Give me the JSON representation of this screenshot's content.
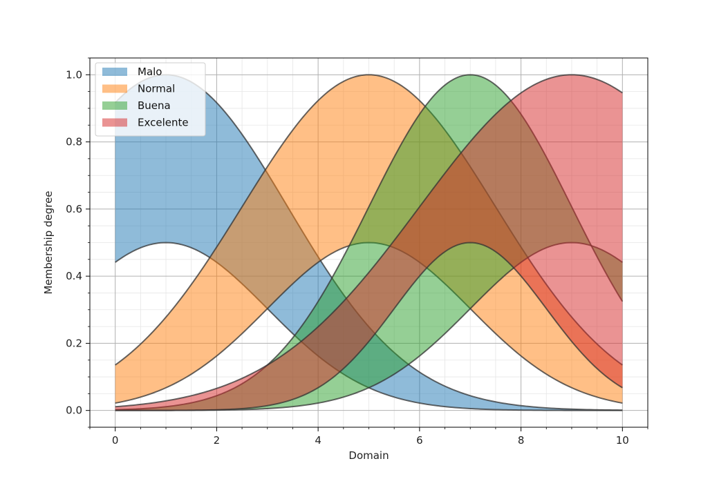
{
  "chart_data": {
    "type": "area",
    "title": "",
    "xlabel": "Domain",
    "ylabel": "Membership degree",
    "xlim": [
      -0.5,
      10.5
    ],
    "ylim": [
      -0.05,
      1.05
    ],
    "x_ticks": [
      "0",
      "2",
      "4",
      "6",
      "8",
      "10"
    ],
    "y_ticks": [
      "0.0",
      "0.2",
      "0.4",
      "0.6",
      "0.8",
      "1.0"
    ],
    "grid": true,
    "minor_grid": true,
    "legend_position": "top-left",
    "x_range": [
      0,
      10
    ],
    "curve_shape": "gaussian band",
    "series": [
      {
        "name": "Malo",
        "color": "#1f77b4",
        "upper_mean": 1,
        "upper_sigma": 2.4,
        "upper_height": 1.0,
        "lower_mean": 1,
        "lower_sigma": 2.0,
        "lower_height": 0.5
      },
      {
        "name": "Normal",
        "color": "#ff7f0e",
        "upper_mean": 5,
        "upper_sigma": 2.5,
        "upper_height": 1.0,
        "lower_mean": 5,
        "lower_sigma": 2.0,
        "lower_height": 0.5
      },
      {
        "name": "Buena",
        "color": "#2ca02c",
        "upper_mean": 7,
        "upper_sigma": 2.0,
        "upper_height": 1.0,
        "lower_mean": 9,
        "lower_sigma": 2.0,
        "lower_height": 0.5
      },
      {
        "name": "Excelente",
        "color": "#d62728",
        "upper_mean": 9,
        "upper_sigma": 3.0,
        "upper_height": 1.0,
        "lower_mean": 7,
        "lower_sigma": 1.5,
        "lower_height": 0.5
      }
    ]
  }
}
